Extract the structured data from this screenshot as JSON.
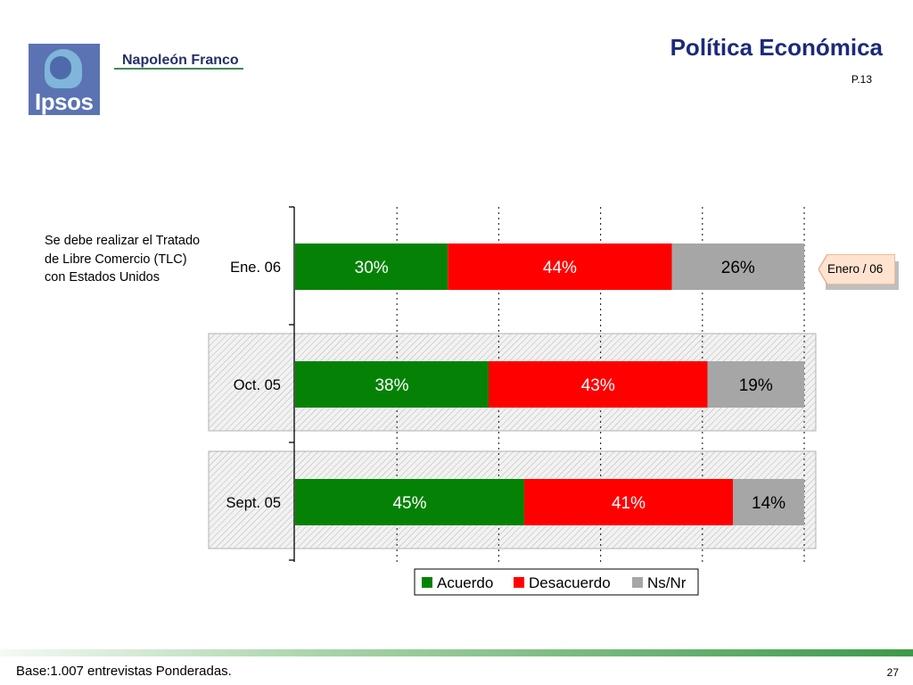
{
  "header": {
    "logo_text": "Ipsos",
    "partner_name": "Napoleón Franco",
    "title": "Política Económica",
    "question_code": "P.13"
  },
  "question": "Se debe realizar el Tratado de Libre Comercio (TLC) con Estados Unidos",
  "period_tag": "Enero / 06",
  "footer": {
    "base_note": "Base:1.007 entrevistas Ponderadas.",
    "page_number": "27"
  },
  "colors": {
    "acuerdo": "#058205",
    "desacuerdo": "#ff0000",
    "nsnr": "#a6a6a6",
    "title": "#1b2a7a"
  },
  "chart_data": {
    "type": "bar",
    "orientation": "horizontal",
    "stacked": true,
    "categories": [
      "Ene. 06",
      "Oct. 05",
      "Sept. 05"
    ],
    "series": [
      {
        "name": "Acuerdo",
        "values": [
          30,
          38,
          45
        ],
        "labels": [
          "30%",
          "38%",
          "45%"
        ]
      },
      {
        "name": "Desacuerdo",
        "values": [
          44,
          43,
          41
        ],
        "labels": [
          "44%",
          "43%",
          "41%"
        ]
      },
      {
        "name": "Ns/Nr",
        "values": [
          26,
          19,
          14
        ],
        "labels": [
          "26%",
          "19%",
          "14%"
        ]
      }
    ],
    "xlim": [
      0,
      100
    ],
    "unit": "%",
    "legend": [
      "Acuerdo",
      "Desacuerdo",
      "Ns/Nr"
    ],
    "legend_position": "bottom",
    "grid": "vertical dotted",
    "highlighted_rows": [
      "Oct. 05",
      "Sept. 05"
    ]
  }
}
